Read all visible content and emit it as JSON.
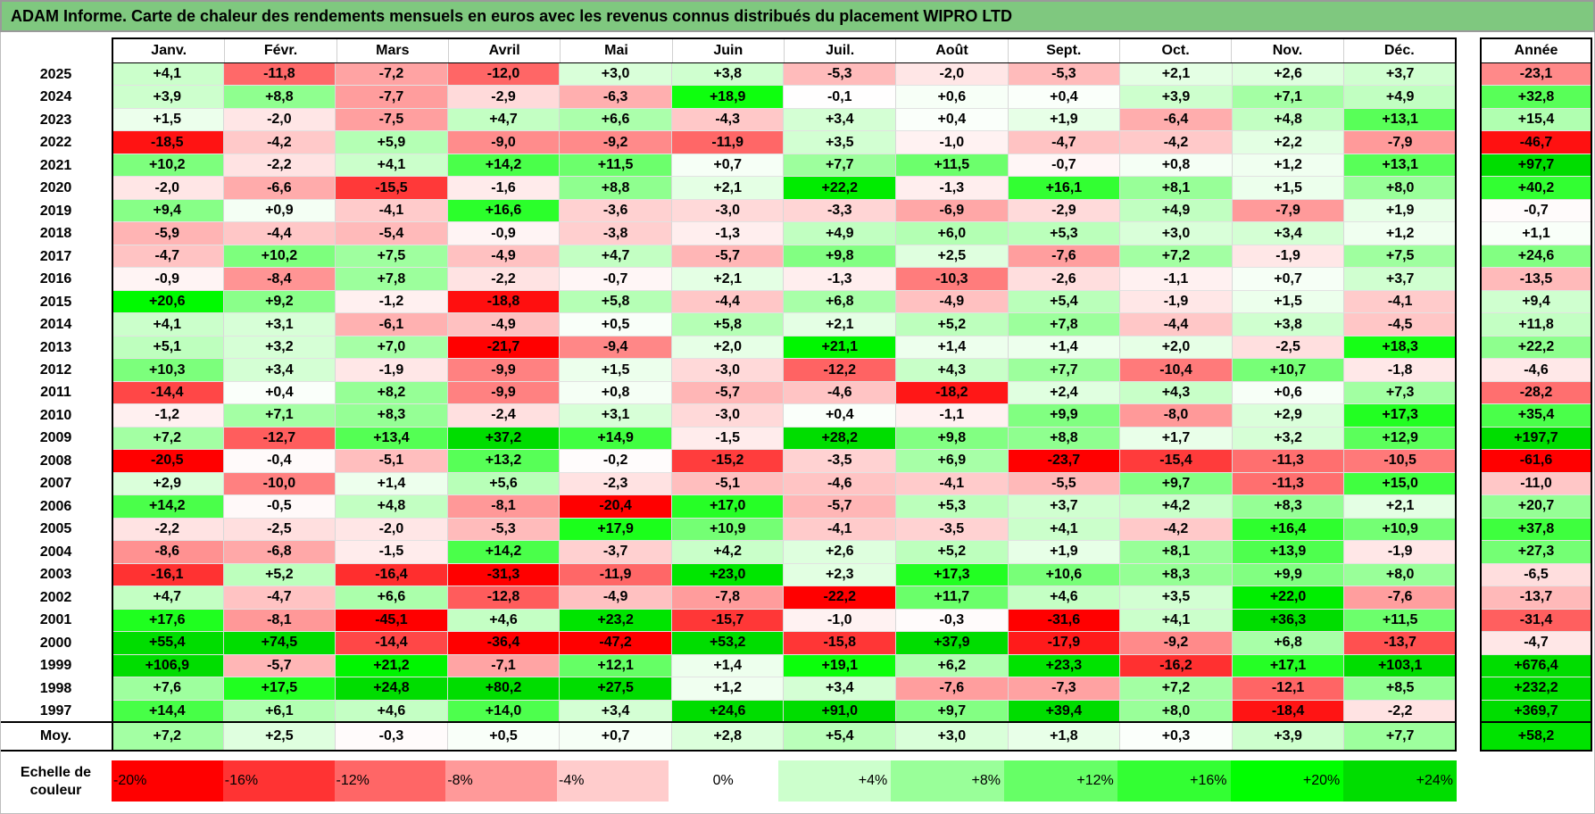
{
  "title": "ADAM Informe. Carte de chaleur des rendements mensuels en euros avec les revenus connus distribués du placement WIPRO LTD",
  "chart_data": {
    "type": "heatmap",
    "title": "ADAM Informe. Carte de chaleur des rendements mensuels en euros avec les revenus connus distribués du placement WIPRO LTD",
    "months": [
      "Janv.",
      "Févr.",
      "Mars",
      "Avril",
      "Mai",
      "Juin",
      "Juil.",
      "Août",
      "Sept.",
      "Oct.",
      "Nov.",
      "Déc."
    ],
    "annual_label": "Année",
    "rows": [
      {
        "year": "2025",
        "values": [
          "+4,1",
          "-11,8",
          "-7,2",
          "-12,0",
          "+3,0",
          "+3,8",
          "-5,3",
          "-2,0",
          "-5,3",
          "+2,1",
          "+2,6",
          "+3,7"
        ],
        "annual": "-23,1"
      },
      {
        "year": "2024",
        "values": [
          "+3,9",
          "+8,8",
          "-7,7",
          "-2,9",
          "-6,3",
          "+18,9",
          "-0,1",
          "+0,6",
          "+0,4",
          "+3,9",
          "+7,1",
          "+4,9"
        ],
        "annual": "+32,8"
      },
      {
        "year": "2023",
        "values": [
          "+1,5",
          "-2,0",
          "-7,5",
          "+4,7",
          "+6,6",
          "-4,3",
          "+3,4",
          "+0,4",
          "+1,9",
          "-6,4",
          "+4,8",
          "+13,1"
        ],
        "annual": "+15,4"
      },
      {
        "year": "2022",
        "values": [
          "-18,5",
          "-4,2",
          "+5,9",
          "-9,0",
          "-9,2",
          "-11,9",
          "+3,5",
          "-1,0",
          "-4,7",
          "-4,2",
          "+2,2",
          "-7,9"
        ],
        "annual": "-46,7"
      },
      {
        "year": "2021",
        "values": [
          "+10,2",
          "-2,2",
          "+4,1",
          "+14,2",
          "+11,5",
          "+0,7",
          "+7,7",
          "+11,5",
          "-0,7",
          "+0,8",
          "+1,2",
          "+13,1"
        ],
        "annual": "+97,7"
      },
      {
        "year": "2020",
        "values": [
          "-2,0",
          "-6,6",
          "-15,5",
          "-1,6",
          "+8,8",
          "+2,1",
          "+22,2",
          "-1,3",
          "+16,1",
          "+8,1",
          "+1,5",
          "+8,0"
        ],
        "annual": "+40,2"
      },
      {
        "year": "2019",
        "values": [
          "+9,4",
          "+0,9",
          "-4,1",
          "+16,6",
          "-3,6",
          "-3,0",
          "-3,3",
          "-6,9",
          "-2,9",
          "+4,9",
          "-7,9",
          "+1,9"
        ],
        "annual": "-0,7"
      },
      {
        "year": "2018",
        "values": [
          "-5,9",
          "-4,4",
          "-5,4",
          "-0,9",
          "-3,8",
          "-1,3",
          "+4,9",
          "+6,0",
          "+5,3",
          "+3,0",
          "+3,4",
          "+1,2"
        ],
        "annual": "+1,1"
      },
      {
        "year": "2017",
        "values": [
          "-4,7",
          "+10,2",
          "+7,5",
          "-4,9",
          "+4,7",
          "-5,7",
          "+9,8",
          "+2,5",
          "-7,6",
          "+7,2",
          "-1,9",
          "+7,5"
        ],
        "annual": "+24,6"
      },
      {
        "year": "2016",
        "values": [
          "-0,9",
          "-8,4",
          "+7,8",
          "-2,2",
          "-0,7",
          "+2,1",
          "-1,3",
          "-10,3",
          "-2,6",
          "-1,1",
          "+0,7",
          "+3,7"
        ],
        "annual": "-13,5"
      },
      {
        "year": "2015",
        "values": [
          "+20,6",
          "+9,2",
          "-1,2",
          "-18,8",
          "+5,8",
          "-4,4",
          "+6,8",
          "-4,9",
          "+5,4",
          "-1,9",
          "+1,5",
          "-4,1"
        ],
        "annual": "+9,4"
      },
      {
        "year": "2014",
        "values": [
          "+4,1",
          "+3,1",
          "-6,1",
          "-4,9",
          "+0,5",
          "+5,8",
          "+2,1",
          "+5,2",
          "+7,8",
          "-4,4",
          "+3,8",
          "-4,5"
        ],
        "annual": "+11,8"
      },
      {
        "year": "2013",
        "values": [
          "+5,1",
          "+3,2",
          "+7,0",
          "-21,7",
          "-9,4",
          "+2,0",
          "+21,1",
          "+1,4",
          "+1,4",
          "+2,0",
          "-2,5",
          "+18,3"
        ],
        "annual": "+22,2"
      },
      {
        "year": "2012",
        "values": [
          "+10,3",
          "+3,4",
          "-1,9",
          "-9,9",
          "+1,5",
          "-3,0",
          "-12,2",
          "+4,3",
          "+7,7",
          "-10,4",
          "+10,7",
          "-1,8"
        ],
        "annual": "-4,6"
      },
      {
        "year": "2011",
        "values": [
          "-14,4",
          "+0,4",
          "+8,2",
          "-9,9",
          "+0,8",
          "-5,7",
          "-4,6",
          "-18,2",
          "+2,4",
          "+4,3",
          "+0,6",
          "+7,3"
        ],
        "annual": "-28,2"
      },
      {
        "year": "2010",
        "values": [
          "-1,2",
          "+7,1",
          "+8,3",
          "-2,4",
          "+3,1",
          "-3,0",
          "+0,4",
          "-1,1",
          "+9,9",
          "-8,0",
          "+2,9",
          "+17,3"
        ],
        "annual": "+35,4"
      },
      {
        "year": "2009",
        "values": [
          "+7,2",
          "-12,7",
          "+13,4",
          "+37,2",
          "+14,9",
          "-1,5",
          "+28,2",
          "+9,8",
          "+8,8",
          "+1,7",
          "+3,2",
          "+12,9"
        ],
        "annual": "+197,7"
      },
      {
        "year": "2008",
        "values": [
          "-20,5",
          "-0,4",
          "-5,1",
          "+13,2",
          "-0,2",
          "-15,2",
          "-3,5",
          "+6,9",
          "-23,7",
          "-15,4",
          "-11,3",
          "-10,5"
        ],
        "annual": "-61,6"
      },
      {
        "year": "2007",
        "values": [
          "+2,9",
          "-10,0",
          "+1,4",
          "+5,6",
          "-2,3",
          "-5,1",
          "-4,6",
          "-4,1",
          "-5,5",
          "+9,7",
          "-11,3",
          "+15,0"
        ],
        "annual": "-11,0"
      },
      {
        "year": "2006",
        "values": [
          "+14,2",
          "-0,5",
          "+4,8",
          "-8,1",
          "-20,4",
          "+17,0",
          "-5,7",
          "+5,3",
          "+3,7",
          "+4,2",
          "+8,3",
          "+2,1"
        ],
        "annual": "+20,7"
      },
      {
        "year": "2005",
        "values": [
          "-2,2",
          "-2,5",
          "-2,0",
          "-5,3",
          "+17,9",
          "+10,9",
          "-4,1",
          "-3,5",
          "+4,1",
          "-4,2",
          "+16,4",
          "+10,9"
        ],
        "annual": "+37,8"
      },
      {
        "year": "2004",
        "values": [
          "-8,6",
          "-6,8",
          "-1,5",
          "+14,2",
          "-3,7",
          "+4,2",
          "+2,6",
          "+5,2",
          "+1,9",
          "+8,1",
          "+13,9",
          "-1,9"
        ],
        "annual": "+27,3"
      },
      {
        "year": "2003",
        "values": [
          "-16,1",
          "+5,2",
          "-16,4",
          "-31,3",
          "-11,9",
          "+23,0",
          "+2,3",
          "+17,3",
          "+10,6",
          "+8,3",
          "+9,9",
          "+8,0"
        ],
        "annual": "-6,5"
      },
      {
        "year": "2002",
        "values": [
          "+4,7",
          "-4,7",
          "+6,6",
          "-12,8",
          "-4,9",
          "-7,8",
          "-22,2",
          "+11,7",
          "+4,6",
          "+3,5",
          "+22,0",
          "-7,6"
        ],
        "annual": "-13,7"
      },
      {
        "year": "2001",
        "values": [
          "+17,6",
          "-8,1",
          "-45,1",
          "+4,6",
          "+23,2",
          "-15,7",
          "-1,0",
          "-0,3",
          "-31,6",
          "+4,1",
          "+36,3",
          "+11,5"
        ],
        "annual": "-31,4"
      },
      {
        "year": "2000",
        "values": [
          "+55,4",
          "+74,5",
          "-14,4",
          "-36,4",
          "-47,2",
          "+53,2",
          "-15,8",
          "+37,9",
          "-17,9",
          "-9,2",
          "+6,8",
          "-13,7"
        ],
        "annual": "-4,7"
      },
      {
        "year": "1999",
        "values": [
          "+106,9",
          "-5,7",
          "+21,2",
          "-7,1",
          "+12,1",
          "+1,4",
          "+19,1",
          "+6,2",
          "+23,3",
          "-16,2",
          "+17,1",
          "+103,1"
        ],
        "annual": "+676,4"
      },
      {
        "year": "1998",
        "values": [
          "+7,6",
          "+17,5",
          "+24,8",
          "+80,2",
          "+27,5",
          "+1,2",
          "+3,4",
          "-7,6",
          "-7,3",
          "+7,2",
          "-12,1",
          "+8,5"
        ],
        "annual": "+232,2"
      },
      {
        "year": "1997",
        "values": [
          "+14,4",
          "+6,1",
          "+4,6",
          "+14,0",
          "+3,4",
          "+24,6",
          "+91,0",
          "+9,7",
          "+39,4",
          "+8,0",
          "-18,4",
          "-2,2"
        ],
        "annual": "+369,7"
      }
    ],
    "average": {
      "label": "Moy.",
      "values": [
        "+7,2",
        "+2,5",
        "-0,3",
        "+0,5",
        "+0,7",
        "+2,8",
        "+5,4",
        "+3,0",
        "+1,8",
        "+0,3",
        "+3,9",
        "+7,7"
      ],
      "annual": "+58,2"
    },
    "scale": {
      "label": "Echelle de couleur",
      "stops": [
        {
          "label": "-20%",
          "color": "#ff0000"
        },
        {
          "label": "-16%",
          "color": "#ff3333"
        },
        {
          "label": "-12%",
          "color": "#ff6666"
        },
        {
          "label": "-8%",
          "color": "#ff9999"
        },
        {
          "label": "-4%",
          "color": "#ffcccc"
        },
        {
          "label": "0%",
          "color": "#ffffff"
        },
        {
          "label": "+4%",
          "color": "#ccffcc"
        },
        {
          "label": "+8%",
          "color": "#99ff99"
        },
        {
          "label": "+12%",
          "color": "#66ff66"
        },
        {
          "label": "+16%",
          "color": "#33ff33"
        },
        {
          "label": "+20%",
          "color": "#00ff00"
        },
        {
          "label": "+24%",
          "color": "#00dd00"
        }
      ]
    }
  }
}
